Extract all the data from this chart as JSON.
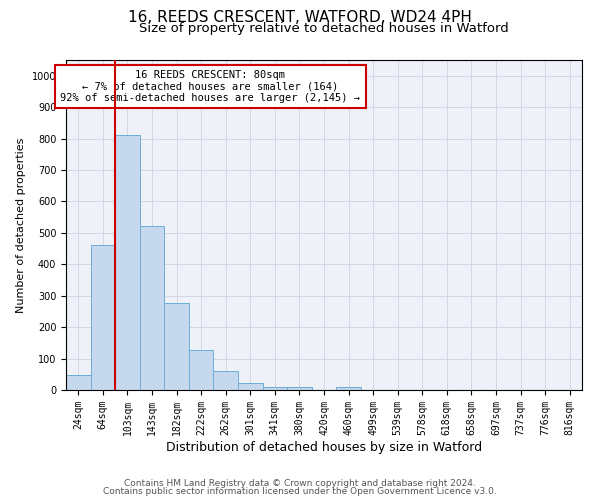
{
  "title1": "16, REEDS CRESCENT, WATFORD, WD24 4PH",
  "title2": "Size of property relative to detached houses in Watford",
  "xlabel": "Distribution of detached houses by size in Watford",
  "ylabel": "Number of detached properties",
  "categories": [
    "24sqm",
    "64sqm",
    "103sqm",
    "143sqm",
    "182sqm",
    "222sqm",
    "262sqm",
    "301sqm",
    "341sqm",
    "380sqm",
    "420sqm",
    "460sqm",
    "499sqm",
    "539sqm",
    "578sqm",
    "618sqm",
    "658sqm",
    "697sqm",
    "737sqm",
    "776sqm",
    "816sqm"
  ],
  "values": [
    47,
    460,
    810,
    522,
    278,
    128,
    60,
    22,
    10,
    10,
    0,
    8,
    0,
    0,
    0,
    0,
    0,
    0,
    0,
    0,
    0
  ],
  "bar_color": "#c5d8ed",
  "bar_edge_color": "#6aaed6",
  "vline_color": "#cc0000",
  "vline_x": 1.5,
  "annotation_text": "16 REEDS CRESCENT: 80sqm\n← 7% of detached houses are smaller (164)\n92% of semi-detached houses are larger (2,145) →",
  "annotation_box_color": "#cc0000",
  "ylim": [
    0,
    1050
  ],
  "yticks": [
    0,
    100,
    200,
    300,
    400,
    500,
    600,
    700,
    800,
    900,
    1000
  ],
  "grid_color": "#d0d8e8",
  "background_color": "#eef2f8",
  "footer1": "Contains HM Land Registry data © Crown copyright and database right 2024.",
  "footer2": "Contains public sector information licensed under the Open Government Licence v3.0.",
  "title1_fontsize": 11,
  "title2_fontsize": 9.5,
  "xlabel_fontsize": 9,
  "ylabel_fontsize": 8,
  "tick_fontsize": 7,
  "annotation_fontsize": 7.5,
  "footer_fontsize": 6.5
}
